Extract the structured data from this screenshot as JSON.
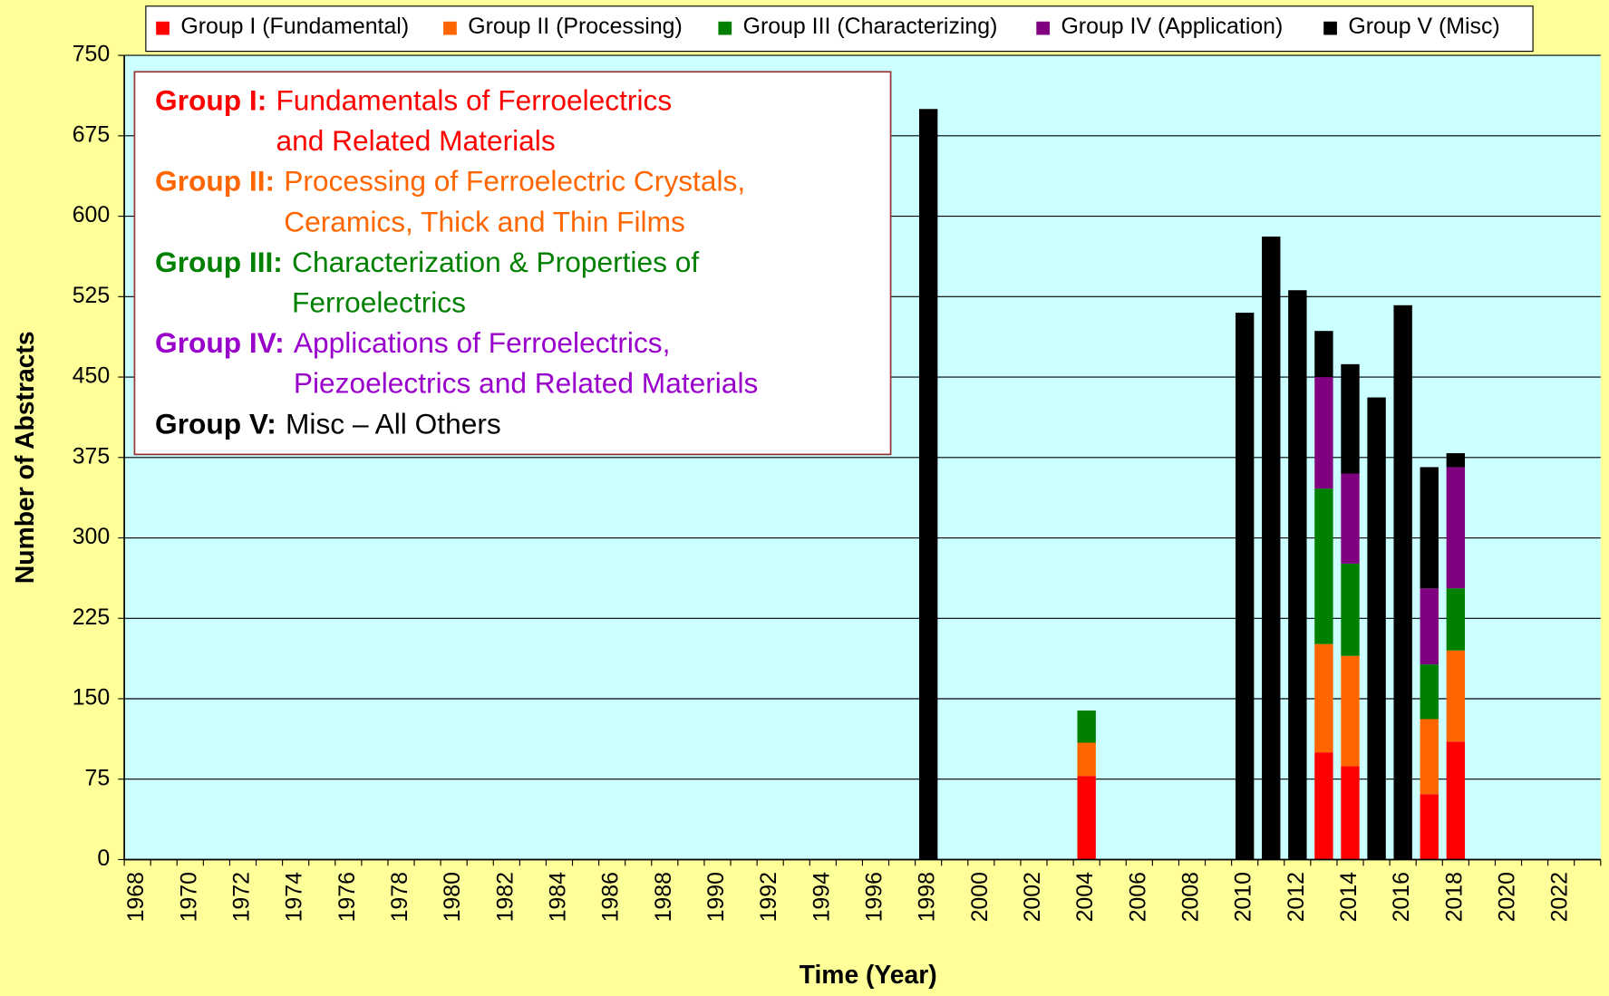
{
  "chart_data": {
    "type": "stacked_bar",
    "xlabel": "Time (Year)",
    "ylabel": "Number of Abstracts",
    "categories": [
      "1968",
      null,
      "1970",
      null,
      "1972",
      null,
      "1974",
      null,
      "1976",
      null,
      "1978",
      null,
      "1980",
      null,
      "1982",
      null,
      "1984",
      null,
      "1986",
      null,
      "1988",
      null,
      "1990",
      null,
      "1992",
      null,
      "1994",
      null,
      "1996",
      null,
      "1998",
      null,
      "2000",
      null,
      "2002",
      null,
      "2004",
      null,
      "2006",
      null,
      "2008",
      null,
      "2010",
      null,
      "2012",
      null,
      "2014",
      null,
      "2016",
      null,
      "2018",
      null,
      "2020",
      null,
      "2022",
      null
    ],
    "series": [
      {
        "name": "Group I (Fundamental)",
        "color": "#ff0000",
        "values": [
          0,
          0,
          0,
          0,
          0,
          0,
          0,
          0,
          0,
          0,
          0,
          0,
          0,
          0,
          0,
          0,
          0,
          0,
          0,
          0,
          0,
          0,
          0,
          0,
          0,
          0,
          0,
          0,
          0,
          0,
          0,
          0,
          0,
          0,
          0,
          0,
          78,
          0,
          0,
          0,
          0,
          0,
          0,
          0,
          0,
          100,
          87,
          0,
          0,
          61,
          110,
          0,
          0,
          0,
          0,
          0
        ]
      },
      {
        "name": "Group II (Processing)",
        "color": "#ff6600",
        "values": [
          0,
          0,
          0,
          0,
          0,
          0,
          0,
          0,
          0,
          0,
          0,
          0,
          0,
          0,
          0,
          0,
          0,
          0,
          0,
          0,
          0,
          0,
          0,
          0,
          0,
          0,
          0,
          0,
          0,
          0,
          0,
          0,
          0,
          0,
          0,
          0,
          31,
          0,
          0,
          0,
          0,
          0,
          0,
          0,
          0,
          101,
          103,
          0,
          0,
          70,
          85,
          0,
          0,
          0,
          0,
          0
        ]
      },
      {
        "name": "Group III (Characterizing)",
        "color": "#008000",
        "values": [
          0,
          0,
          0,
          0,
          0,
          0,
          0,
          0,
          0,
          0,
          0,
          0,
          0,
          0,
          0,
          0,
          0,
          0,
          0,
          0,
          0,
          0,
          0,
          0,
          0,
          0,
          0,
          0,
          0,
          0,
          0,
          0,
          0,
          0,
          0,
          0,
          30,
          0,
          0,
          0,
          0,
          0,
          0,
          0,
          0,
          145,
          86,
          0,
          0,
          51,
          58,
          0,
          0,
          0,
          0,
          0
        ]
      },
      {
        "name": "Group IV (Application)",
        "color": "#800080",
        "values": [
          0,
          0,
          0,
          0,
          0,
          0,
          0,
          0,
          0,
          0,
          0,
          0,
          0,
          0,
          0,
          0,
          0,
          0,
          0,
          0,
          0,
          0,
          0,
          0,
          0,
          0,
          0,
          0,
          0,
          0,
          0,
          0,
          0,
          0,
          0,
          0,
          0,
          0,
          0,
          0,
          0,
          0,
          0,
          0,
          0,
          104,
          84,
          0,
          0,
          71,
          113,
          0,
          0,
          0,
          0,
          0
        ]
      },
      {
        "name": "Group V (Misc)",
        "color": "#000000",
        "values": [
          0,
          0,
          0,
          0,
          0,
          0,
          0,
          0,
          0,
          0,
          0,
          0,
          0,
          0,
          0,
          0,
          0,
          0,
          0,
          0,
          0,
          0,
          0,
          0,
          0,
          0,
          0,
          0,
          0,
          0,
          700,
          0,
          0,
          0,
          0,
          0,
          0,
          0,
          0,
          0,
          0,
          0,
          510,
          581,
          531,
          43,
          102,
          431,
          517,
          113,
          13,
          0,
          0,
          0,
          0,
          0
        ]
      }
    ],
    "ylim": [
      0,
      750
    ],
    "yticks": [
      0,
      75,
      150,
      225,
      300,
      375,
      450,
      525,
      600,
      675,
      750
    ],
    "grid": true,
    "annotation_box": [
      {
        "label": "Group I:",
        "lines": [
          "Fundamentals of Ferroelectrics",
          "and Related Materials"
        ],
        "color": "#ff0000"
      },
      {
        "label": "Group II:",
        "lines": [
          "Processing of Ferroelectric Crystals,",
          "Ceramics, Thick and Thin Films"
        ],
        "color": "#ff6600"
      },
      {
        "label": "Group III:",
        "lines": [
          "Characterization & Properties of",
          "Ferroelectrics"
        ],
        "color": "#008000"
      },
      {
        "label": "Group IV:",
        "lines": [
          "Applications of Ferroelectrics,",
          "Piezoelectrics and Related Materials"
        ],
        "color": "#9900cc"
      },
      {
        "label": "Group V:",
        "lines": [
          "Misc – All Others"
        ],
        "color": "#000000"
      }
    ]
  }
}
